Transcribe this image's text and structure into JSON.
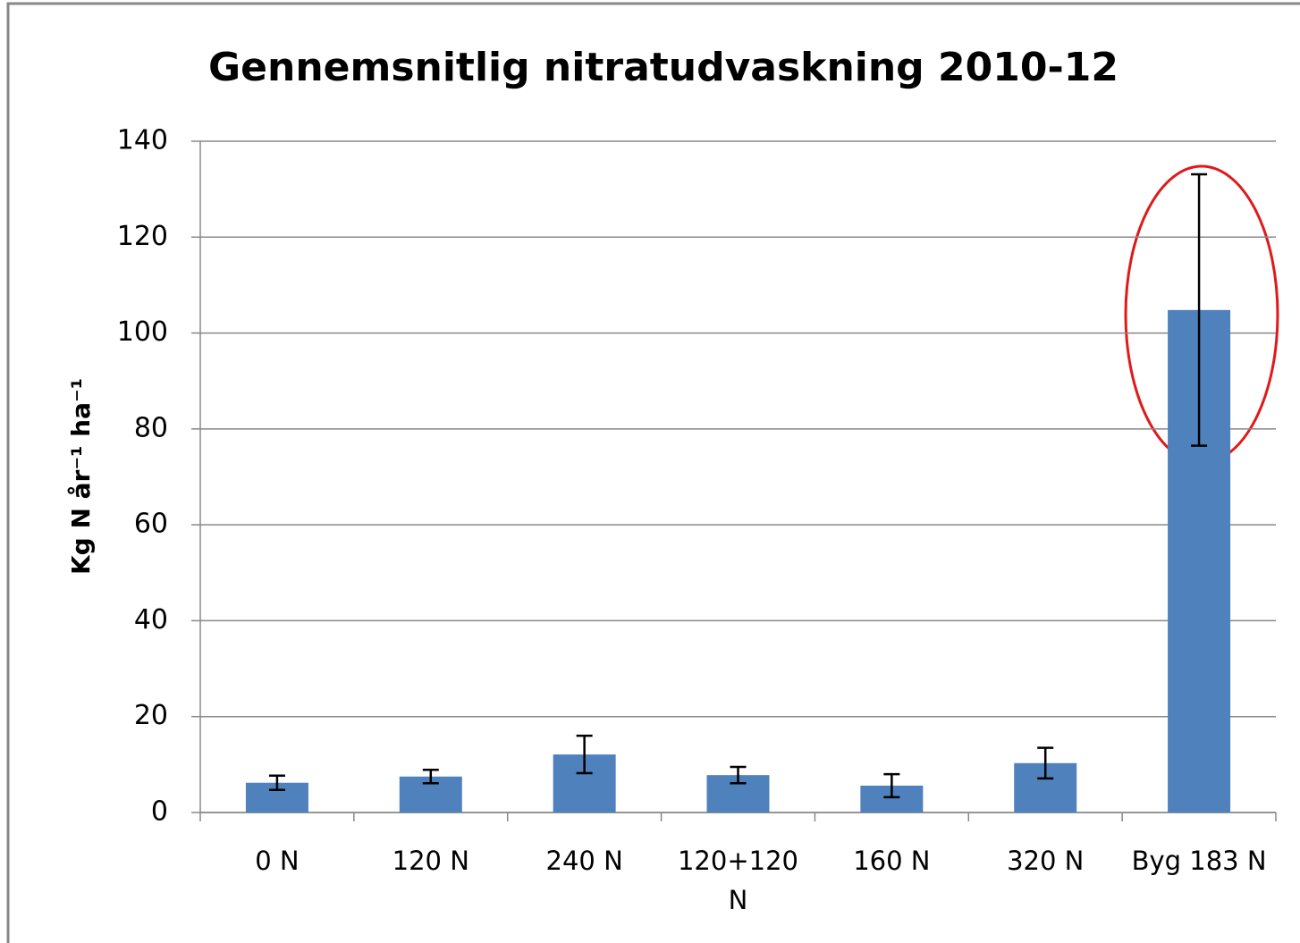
{
  "chart_data": {
    "type": "bar",
    "title": "Gennemsnitlig nitratudvaskning 2010-12",
    "y_label": "Kg N år⁻¹ ha⁻¹",
    "categories": [
      "0 N",
      "120 N",
      "240 N",
      "120+120 N",
      "160 N",
      "320 N",
      "Byg 183 N"
    ],
    "values": [
      6.2,
      7.5,
      12.1,
      7.8,
      5.6,
      10.3,
      104.8
    ],
    "errors": [
      1.5,
      1.4,
      3.9,
      1.7,
      2.4,
      3.2,
      28.3
    ],
    "color": "#4f81bd",
    "ylim": [
      0,
      140
    ],
    "yticks": [
      0,
      20,
      40,
      60,
      80,
      100,
      120,
      140
    ],
    "grid": true
  }
}
